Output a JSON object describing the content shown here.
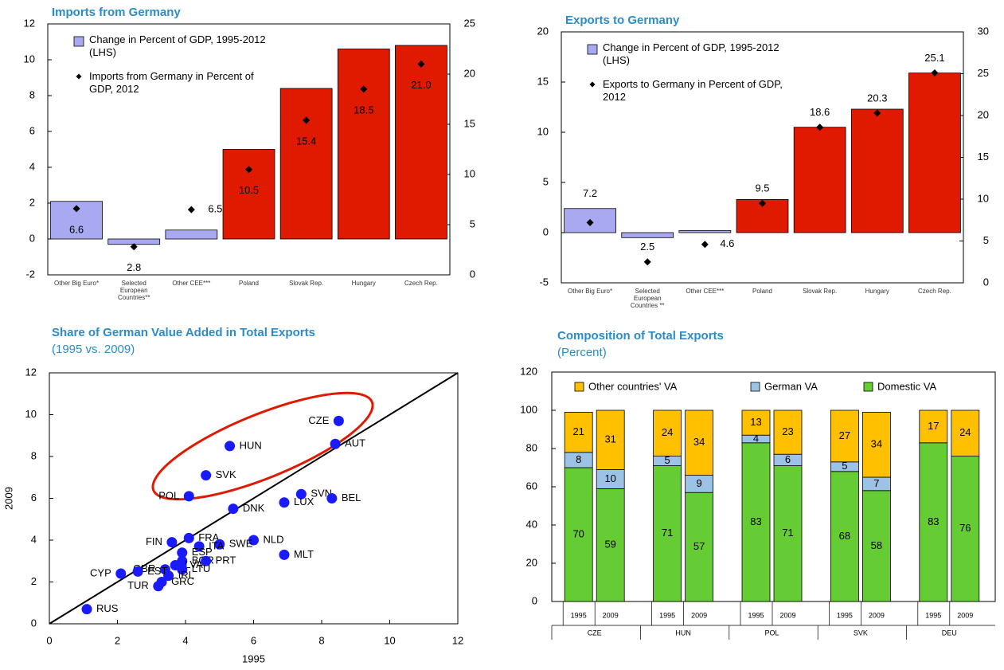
{
  "chart_data": [
    {
      "type": "bar",
      "title": "Imports from Germany",
      "categories": [
        "Other Big Euro*",
        "Selected European Countries**",
        "Other CEE***",
        "Poland",
        "Slovak Rep.",
        "Hungary",
        "Czech Rep."
      ],
      "series": [
        {
          "name": "Change in Percent of GDP, 1995-2012 (LHS)",
          "type": "bar",
          "color": "#a9a9f2",
          "colors": [
            "#a9a9f2",
            "#a9a9f2",
            "#a9a9f2",
            "#e01a00",
            "#e01a00",
            "#e01a00",
            "#e01a00"
          ],
          "values": [
            2.1,
            -0.3,
            0.5,
            5.0,
            8.4,
            10.6,
            10.8
          ]
        },
        {
          "name": "Imports from Germany in Percent of GDP, 2012",
          "type": "marker",
          "axis": "y2",
          "color": "#000000",
          "values": [
            6.6,
            2.8,
            6.5,
            10.5,
            15.4,
            18.5,
            21.0
          ],
          "value_labels": [
            "6.6",
            "2.8",
            "6.5",
            "10.5",
            "15.4",
            "18.5",
            "21.0"
          ]
        }
      ],
      "ylim": [
        -2,
        12
      ],
      "yticks": [
        -2,
        0,
        2,
        4,
        6,
        8,
        10,
        12
      ],
      "y2lim": [
        0,
        25
      ],
      "y2ticks": [
        0,
        5,
        10,
        15,
        20,
        25
      ]
    },
    {
      "type": "bar",
      "title": "Exports to Germany",
      "categories": [
        "Other Big Euro*",
        "Selected European Countries **",
        "Other CEE***",
        "Poland",
        "Slovak Rep.",
        "Hungary",
        "Czech Rep."
      ],
      "series": [
        {
          "name": "Change in Percent of GDP, 1995-2012 (LHS)",
          "type": "bar",
          "color": "#a9a9f2",
          "colors": [
            "#a9a9f2",
            "#a9a9f2",
            "#a9a9f2",
            "#e01a00",
            "#e01a00",
            "#e01a00",
            "#e01a00"
          ],
          "values": [
            2.4,
            -0.5,
            0.2,
            3.3,
            10.5,
            12.3,
            15.9
          ]
        },
        {
          "name": "Exports to Germany in Percent of GDP, 2012",
          "type": "marker",
          "axis": "y2",
          "color": "#000000",
          "values": [
            7.2,
            2.5,
            4.6,
            9.5,
            18.6,
            20.3,
            25.1
          ]
        }
      ],
      "ylim": [
        -5,
        20
      ],
      "yticks": [
        -5,
        0,
        5,
        10,
        15,
        20
      ],
      "y2lim": [
        0,
        30
      ],
      "y2ticks": [
        0,
        5,
        10,
        15,
        20,
        25,
        30
      ]
    },
    {
      "type": "scatter",
      "title": "Share of German Value Added in Total Exports",
      "subtitle": "(1995 vs. 2009)",
      "x_label": "1995",
      "y_label": "2009",
      "color": "#1a1aff",
      "labels": [
        "RUS",
        "CZE",
        "AUT",
        "HUN",
        "SVK",
        "POL",
        "SVN",
        "LUX",
        "BEL",
        "DNK",
        "NLD",
        "MLT",
        "FIN",
        "FRA",
        "SWE",
        "ITA",
        "ESP",
        "BGR",
        "PRT",
        "LVA",
        "LTU",
        "IRL",
        "GRC",
        "TUR",
        "GBR",
        "EST",
        "CYP"
      ],
      "x": [
        1.1,
        8.5,
        8.4,
        5.3,
        4.6,
        4.1,
        7.4,
        6.9,
        8.3,
        5.4,
        6.0,
        6.9,
        3.6,
        4.1,
        5.0,
        4.4,
        3.9,
        3.9,
        4.6,
        3.7,
        3.9,
        3.5,
        3.3,
        3.2,
        3.4,
        2.6,
        2.1
      ],
      "y": [
        0.7,
        9.7,
        8.6,
        8.5,
        7.1,
        6.1,
        6.2,
        5.8,
        6.0,
        5.5,
        4.0,
        3.3,
        3.9,
        4.1,
        3.8,
        3.7,
        3.4,
        3.0,
        3.0,
        2.8,
        2.6,
        2.3,
        2.0,
        1.8,
        2.6,
        2.5,
        2.4
      ],
      "xlim": [
        0,
        12
      ],
      "xticks": [
        0,
        2,
        4,
        6,
        8,
        10,
        12
      ],
      "ylim": [
        0,
        12
      ],
      "yticks": [
        0,
        2,
        4,
        6,
        8,
        10,
        12
      ]
    },
    {
      "type": "stacked_bar",
      "title": "Composition of Total Exports",
      "subtitle": "(Percent)",
      "categories": [
        "1995",
        "2009",
        "1995",
        "2009",
        "1995",
        "2009",
        "1995",
        "2009",
        "1995",
        "2009"
      ],
      "groups": [
        "CZE",
        "HUN",
        "POL",
        "SVK",
        "DEU"
      ],
      "series": [
        {
          "name": "Domestic VA",
          "color": "#66cc33",
          "values": [
            70,
            59,
            71,
            57,
            83,
            71,
            68,
            58,
            83,
            76
          ]
        },
        {
          "name": "German VA",
          "color": "#9cc3e6",
          "values": [
            8,
            10,
            5,
            9,
            4,
            6,
            5,
            7,
            null,
            null
          ]
        },
        {
          "name": "Other countries' VA",
          "color": "#ffc000",
          "values": [
            21,
            31,
            24,
            34,
            13,
            23,
            27,
            34,
            17,
            24
          ]
        }
      ],
      "ylim": [
        0,
        120
      ],
      "yticks": [
        0,
        20,
        40,
        60,
        80,
        100,
        120
      ]
    }
  ]
}
